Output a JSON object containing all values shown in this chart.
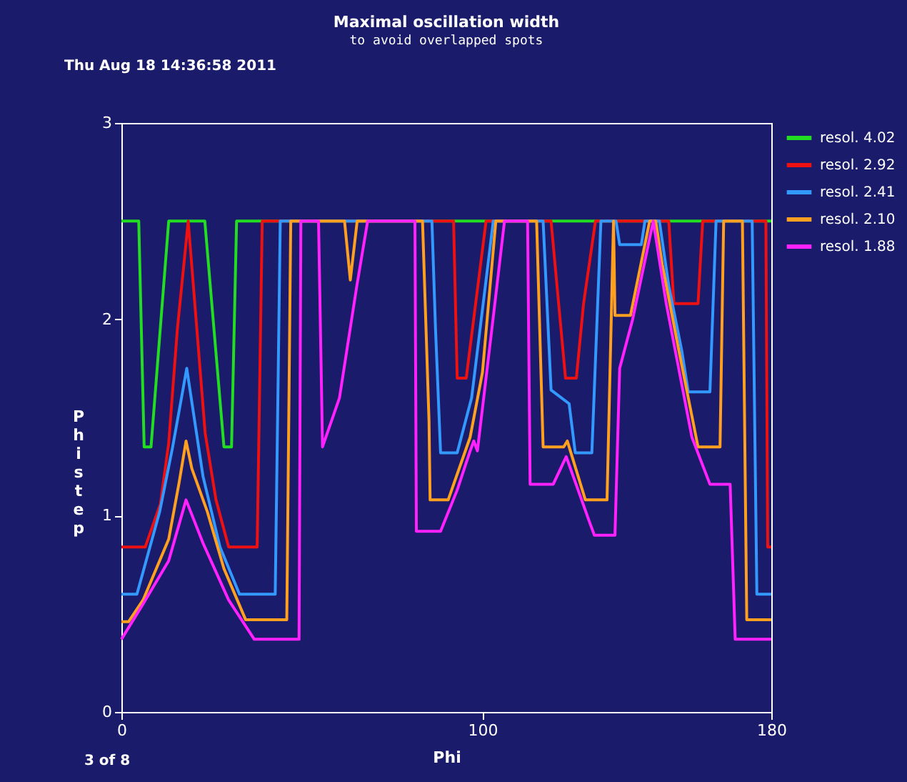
{
  "chart_data": {
    "type": "line",
    "title": "Maximal oscillation width",
    "subtitle": "to avoid overlapped spots",
    "xlabel": "Phi",
    "ylabel": "Phi step",
    "annotations": [
      "Thu Aug 18 14:36:58 2011",
      "3 of 8"
    ],
    "xlim": [
      0,
      180
    ],
    "xticks": [
      0,
      100,
      180
    ],
    "ylim": [
      0,
      3
    ],
    "yticks": [
      0,
      1,
      2,
      3
    ],
    "grid": false,
    "legend": "top right",
    "series": [
      {
        "name": "resol. 4.02",
        "color": "#22dd22",
        "x": [
          0,
          4.8,
          6.3,
          8.2,
          13.1,
          23.1,
          28.4,
          30.5,
          31.9,
          180
        ],
        "values": [
          2.5,
          2.5,
          1.35,
          1.35,
          2.5,
          2.5,
          1.35,
          1.35,
          2.5,
          2.5
        ]
      },
      {
        "name": "resol. 2.92",
        "color": "#ee1111",
        "x": [
          0,
          6.6,
          10.8,
          13.1,
          15.5,
          18.5,
          23.2,
          26.2,
          29.7,
          37.6,
          39,
          92,
          93,
          95.5,
          101,
          119,
          123,
          126,
          128,
          131.3,
          151.6,
          153,
          159.7,
          161,
          178.5,
          179,
          180
        ],
        "values": [
          0.84,
          0.84,
          1.06,
          1.37,
          1.95,
          2.5,
          1.42,
          1.08,
          0.84,
          0.84,
          2.5,
          2.5,
          1.7,
          1.7,
          2.5,
          2.5,
          1.7,
          1.7,
          2.08,
          2.5,
          2.5,
          2.08,
          2.08,
          2.5,
          2.5,
          0.84,
          0.84
        ]
      },
      {
        "name": "resol. 2.41",
        "color": "#3399ff",
        "x": [
          0,
          4.3,
          10.6,
          14.2,
          18.1,
          22.6,
          27.3,
          32.7,
          42.6,
          44,
          86,
          87,
          88.4,
          93,
          97,
          103,
          116.8,
          119,
          124,
          125.7,
          130.3,
          132.8,
          137,
          138,
          144,
          145,
          149,
          151.6,
          155.2,
          157,
          163,
          164.7,
          174.7,
          176,
          180
        ],
        "values": [
          0.6,
          0.6,
          1.02,
          1.35,
          1.75,
          1.2,
          0.84,
          0.6,
          0.6,
          2.5,
          2.5,
          1.95,
          1.32,
          1.32,
          1.6,
          2.5,
          2.5,
          1.64,
          1.57,
          1.32,
          1.32,
          2.5,
          2.5,
          2.38,
          2.38,
          2.5,
          2.5,
          2.17,
          1.84,
          1.63,
          1.63,
          2.5,
          2.5,
          0.6,
          0.6
        ]
      },
      {
        "name": "resol. 2.10",
        "color": "#ffa020",
        "x": [
          0,
          2,
          6,
          13.1,
          16,
          17.9,
          19.5,
          23.8,
          28.4,
          34.4,
          45.8,
          46.9,
          61.8,
          63.4,
          65.3,
          83.4,
          85.2,
          85.5,
          90.5,
          96.6,
          100,
          103.7,
          115,
          116.8,
          122.5,
          123.5,
          128.5,
          134.5,
          136.3,
          136.7,
          141,
          146.3,
          148,
          149.8,
          154.4,
          159.7,
          165.8,
          166.8,
          172,
          173.2,
          180
        ],
        "values": [
          0.46,
          0.46,
          0.57,
          0.88,
          1.17,
          1.38,
          1.24,
          1.02,
          0.73,
          0.47,
          0.47,
          2.5,
          2.5,
          2.2,
          2.5,
          2.5,
          1.48,
          1.08,
          1.08,
          1.4,
          1.73,
          2.5,
          2.5,
          1.35,
          1.35,
          1.38,
          1.08,
          1.08,
          2.5,
          2.02,
          2.02,
          2.5,
          2.5,
          2.28,
          1.84,
          1.35,
          1.35,
          2.5,
          2.5,
          0.47,
          0.47
        ]
      },
      {
        "name": "resol. 1.88",
        "color": "#ff22ff",
        "x": [
          0,
          6,
          13.1,
          17.9,
          22.6,
          29.7,
          36.8,
          49.2,
          49.7,
          54.6,
          55.7,
          60.4,
          65.2,
          68.2,
          81.3,
          81.7,
          88.4,
          93,
          96.6,
          97.6,
          98.6,
          102.6,
          106.1,
          112.5,
          113.2,
          119.6,
          123.2,
          129.6,
          131,
          136.7,
          138,
          141.6,
          147.3,
          150.9,
          158,
          163,
          168.6,
          170,
          180
        ],
        "values": [
          0.37,
          0.55,
          0.77,
          1.08,
          0.86,
          0.57,
          0.37,
          0.37,
          2.5,
          2.5,
          1.35,
          1.6,
          2.17,
          2.5,
          2.5,
          0.92,
          0.92,
          1.13,
          1.33,
          1.38,
          1.33,
          1.95,
          2.5,
          2.5,
          1.16,
          1.16,
          1.3,
          0.97,
          0.9,
          0.9,
          1.75,
          2.0,
          2.5,
          2.08,
          1.4,
          1.16,
          1.16,
          0.37,
          0.37
        ]
      }
    ]
  }
}
